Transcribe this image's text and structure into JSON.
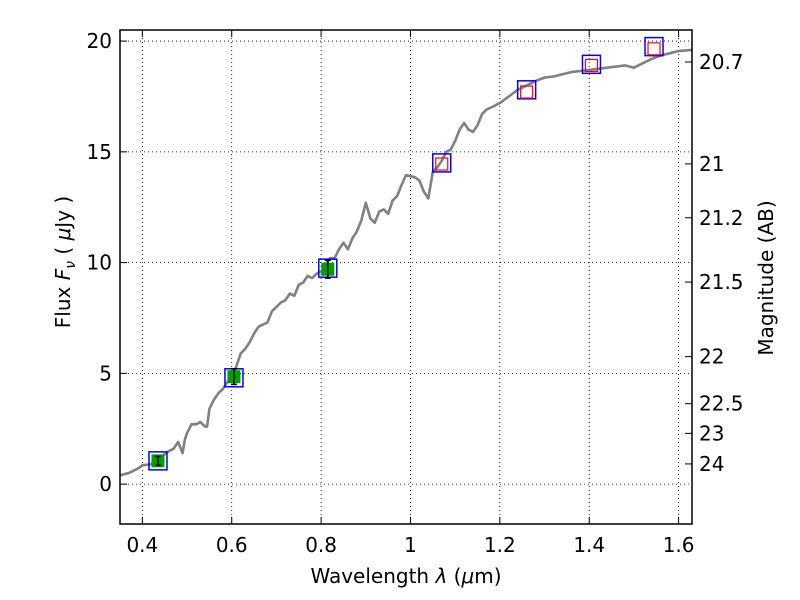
{
  "chart_data": {
    "type": "line",
    "xlabel_prefix": "Wavelength  ",
    "xlabel_symbol": "λ",
    "xlabel_unit_open": " (",
    "xlabel_unit_mu": "μ",
    "xlabel_unit_rest": "m)",
    "ylabel_prefix": "Flux  ",
    "ylabel_symbol": "F",
    "ylabel_sub": "ν",
    "ylabel_unit_open": "  (  ",
    "ylabel_unit_mu": "μ",
    "ylabel_unit_rest": "Jy )",
    "y2label": "Magnitude (AB)",
    "xlim": [
      0.35,
      1.63
    ],
    "ylim": [
      -1.8,
      20.5
    ],
    "grid": true,
    "x_ticks": [
      {
        "value": 0.4,
        "label": "0.4"
      },
      {
        "value": 0.6,
        "label": "0.6"
      },
      {
        "value": 0.8,
        "label": "0.8"
      },
      {
        "value": 1.0,
        "label": "1"
      },
      {
        "value": 1.2,
        "label": "1.2"
      },
      {
        "value": 1.4,
        "label": "1.4"
      },
      {
        "value": 1.6,
        "label": "1.6"
      }
    ],
    "y_ticks": [
      {
        "value": 0,
        "label": "0"
      },
      {
        "value": 5,
        "label": "5"
      },
      {
        "value": 10,
        "label": "10"
      },
      {
        "value": 15,
        "label": "15"
      },
      {
        "value": 20,
        "label": "20"
      }
    ],
    "mag_ticks": [
      {
        "value": 20.7,
        "label": "20.7"
      },
      {
        "value": 21,
        "label": "21"
      },
      {
        "value": 21.2,
        "label": "21.2"
      },
      {
        "value": 21.5,
        "label": "21.5"
      },
      {
        "value": 22,
        "label": "22"
      },
      {
        "value": 22.5,
        "label": "22.5"
      },
      {
        "value": 23,
        "label": "23"
      },
      {
        "value": 24,
        "label": "24"
      }
    ],
    "series": [
      {
        "kind": "model-spectrum",
        "color": "#808080",
        "x": [
          0.35,
          0.37,
          0.39,
          0.4,
          0.42,
          0.43,
          0.44,
          0.45,
          0.46,
          0.47,
          0.48,
          0.49,
          0.495,
          0.5,
          0.51,
          0.52,
          0.53,
          0.54,
          0.545,
          0.55,
          0.56,
          0.57,
          0.58,
          0.59,
          0.6,
          0.61,
          0.62,
          0.63,
          0.64,
          0.65,
          0.66,
          0.67,
          0.68,
          0.69,
          0.7,
          0.71,
          0.72,
          0.73,
          0.74,
          0.75,
          0.76,
          0.77,
          0.78,
          0.79,
          0.8,
          0.81,
          0.82,
          0.83,
          0.84,
          0.85,
          0.86,
          0.87,
          0.88,
          0.89,
          0.9,
          0.91,
          0.92,
          0.93,
          0.94,
          0.95,
          0.96,
          0.97,
          0.98,
          0.99,
          1.0,
          1.01,
          1.02,
          1.03,
          1.04,
          1.05,
          1.06,
          1.07,
          1.08,
          1.09,
          1.1,
          1.11,
          1.12,
          1.13,
          1.14,
          1.15,
          1.16,
          1.17,
          1.18,
          1.19,
          1.2,
          1.22,
          1.24,
          1.26,
          1.28,
          1.3,
          1.32,
          1.34,
          1.36,
          1.38,
          1.4,
          1.42,
          1.44,
          1.46,
          1.48,
          1.5,
          1.52,
          1.54,
          1.56,
          1.58,
          1.6,
          1.63
        ],
        "y": [
          0.4,
          0.5,
          0.7,
          0.85,
          0.9,
          1.1,
          1.2,
          1.35,
          1.5,
          1.6,
          1.9,
          1.4,
          2.0,
          2.3,
          2.7,
          2.7,
          2.8,
          2.6,
          2.6,
          3.4,
          3.8,
          4.1,
          4.3,
          4.6,
          4.8,
          5.3,
          5.9,
          6.1,
          6.4,
          6.8,
          7.1,
          7.2,
          7.3,
          7.8,
          8.0,
          8.2,
          8.3,
          8.6,
          8.5,
          9.0,
          9.1,
          9.4,
          9.3,
          9.5,
          9.6,
          9.9,
          10.2,
          10.2,
          10.6,
          10.9,
          10.6,
          11.1,
          11.4,
          11.9,
          12.7,
          12.0,
          11.8,
          12.3,
          12.4,
          12.2,
          12.8,
          13.0,
          13.5,
          13.95,
          13.9,
          13.85,
          13.7,
          13.2,
          12.9,
          14.1,
          14.3,
          14.6,
          15.0,
          15.1,
          15.5,
          16.0,
          16.3,
          16.0,
          15.9,
          16.2,
          16.7,
          16.9,
          17.0,
          17.1,
          17.2,
          17.5,
          17.8,
          18.0,
          18.2,
          18.35,
          18.4,
          18.5,
          18.6,
          18.65,
          18.7,
          18.75,
          18.8,
          18.85,
          18.9,
          18.8,
          19.0,
          19.2,
          19.35,
          19.45,
          19.55,
          19.6
        ]
      },
      {
        "kind": "model-photometry",
        "color": "#0000ff",
        "x": [
          0.435,
          0.605,
          0.815,
          1.07,
          1.26,
          1.405,
          1.545
        ],
        "y": [
          1.05,
          4.8,
          9.75,
          14.5,
          17.8,
          18.95,
          19.75
        ]
      },
      {
        "kind": "observed-upper-limits",
        "color": "#ff0000",
        "x": [
          1.07,
          1.26,
          1.405,
          1.545
        ],
        "y": [
          14.45,
          17.7,
          18.9,
          19.65
        ]
      },
      {
        "kind": "observed-detections",
        "color": "#00a000",
        "x": [
          0.435,
          0.605,
          0.815
        ],
        "y": [
          1.05,
          4.85,
          9.7
        ],
        "yerr": [
          0.2,
          0.35,
          0.4
        ]
      }
    ]
  }
}
